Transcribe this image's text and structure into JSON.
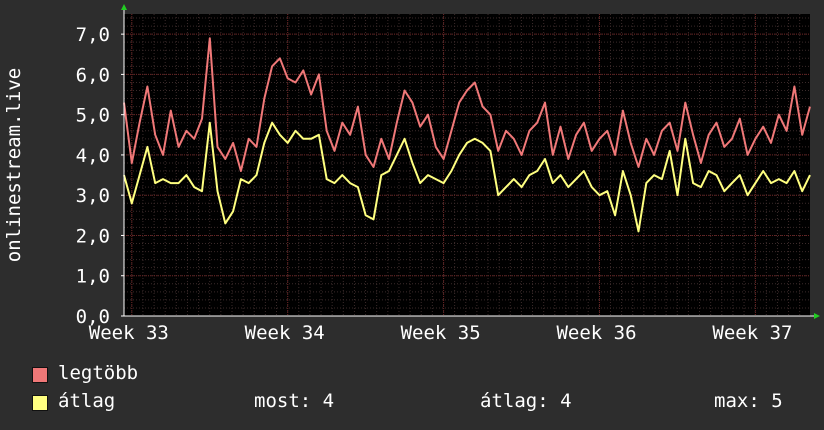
{
  "chart_data": {
    "type": "line",
    "title": "",
    "xlabel": "",
    "ylabel": "onlinestream.live",
    "ylim": [
      0,
      7.5
    ],
    "y_ticks": [
      "0,0",
      "1,0",
      "2,0",
      "3,0",
      "4,0",
      "5,0",
      "6,0",
      "7,0"
    ],
    "x_ticks": [
      "Week 33",
      "Week 34",
      "Week 35",
      "Week 36",
      "Week 37"
    ],
    "x_tick_positions": [
      0.5,
      1.5,
      2.5,
      3.5,
      4.5
    ],
    "xlim": [
      0.45,
      4.85
    ],
    "grid": true,
    "background": "#000000",
    "series": [
      {
        "name": "legtöbb",
        "color": "#f07878",
        "x": [
          0.45,
          0.5,
          0.55,
          0.6,
          0.65,
          0.7,
          0.75,
          0.8,
          0.85,
          0.9,
          0.95,
          1.0,
          1.05,
          1.1,
          1.15,
          1.2,
          1.25,
          1.3,
          1.35,
          1.4,
          1.45,
          1.5,
          1.55,
          1.6,
          1.65,
          1.7,
          1.75,
          1.8,
          1.85,
          1.9,
          1.95,
          2.0,
          2.05,
          2.1,
          2.15,
          2.2,
          2.25,
          2.3,
          2.35,
          2.4,
          2.45,
          2.5,
          2.55,
          2.6,
          2.65,
          2.7,
          2.75,
          2.8,
          2.85,
          2.9,
          2.95,
          3.0,
          3.05,
          3.1,
          3.15,
          3.2,
          3.25,
          3.3,
          3.35,
          3.4,
          3.45,
          3.5,
          3.55,
          3.6,
          3.65,
          3.7,
          3.75,
          3.8,
          3.85,
          3.9,
          3.95,
          4.0,
          4.05,
          4.1,
          4.15,
          4.2,
          4.25,
          4.3,
          4.35,
          4.4,
          4.45,
          4.5,
          4.55,
          4.6,
          4.65,
          4.7,
          4.75,
          4.8,
          4.85
        ],
        "values": [
          5.3,
          3.8,
          4.8,
          5.7,
          4.5,
          4.0,
          5.1,
          4.2,
          4.6,
          4.4,
          4.9,
          6.9,
          4.2,
          3.9,
          4.3,
          3.6,
          4.4,
          4.2,
          5.4,
          6.2,
          6.4,
          5.9,
          5.8,
          6.1,
          5.5,
          6.0,
          4.6,
          4.1,
          4.8,
          4.5,
          5.2,
          4.0,
          3.7,
          4.4,
          3.9,
          4.8,
          5.6,
          5.3,
          4.7,
          5.0,
          4.2,
          3.9,
          4.6,
          5.3,
          5.6,
          5.8,
          5.2,
          5.0,
          4.1,
          4.6,
          4.4,
          4.0,
          4.6,
          4.8,
          5.3,
          4.0,
          4.7,
          3.9,
          4.5,
          4.8,
          4.1,
          4.4,
          4.6,
          4.0,
          5.1,
          4.3,
          3.7,
          4.4,
          4.0,
          4.6,
          4.8,
          4.1,
          5.3,
          4.5,
          3.8,
          4.5,
          4.8,
          4.2,
          4.4,
          4.9,
          4.0,
          4.4,
          4.7,
          4.3,
          5.0,
          4.6,
          5.7,
          4.5,
          5.2
        ]
      },
      {
        "name": "átlag",
        "color": "#ffff80",
        "x": [
          0.45,
          0.5,
          0.55,
          0.6,
          0.65,
          0.7,
          0.75,
          0.8,
          0.85,
          0.9,
          0.95,
          1.0,
          1.05,
          1.1,
          1.15,
          1.2,
          1.25,
          1.3,
          1.35,
          1.4,
          1.45,
          1.5,
          1.55,
          1.6,
          1.65,
          1.7,
          1.75,
          1.8,
          1.85,
          1.9,
          1.95,
          2.0,
          2.05,
          2.1,
          2.15,
          2.2,
          2.25,
          2.3,
          2.35,
          2.4,
          2.45,
          2.5,
          2.55,
          2.6,
          2.65,
          2.7,
          2.75,
          2.8,
          2.85,
          2.9,
          2.95,
          3.0,
          3.05,
          3.1,
          3.15,
          3.2,
          3.25,
          3.3,
          3.35,
          3.4,
          3.45,
          3.5,
          3.55,
          3.6,
          3.65,
          3.7,
          3.75,
          3.8,
          3.85,
          3.9,
          3.95,
          4.0,
          4.05,
          4.1,
          4.15,
          4.2,
          4.25,
          4.3,
          4.35,
          4.4,
          4.45,
          4.5,
          4.55,
          4.6,
          4.65,
          4.7,
          4.75,
          4.8,
          4.85
        ],
        "values": [
          3.5,
          2.8,
          3.5,
          4.2,
          3.3,
          3.4,
          3.3,
          3.3,
          3.5,
          3.2,
          3.1,
          4.8,
          3.1,
          2.3,
          2.6,
          3.4,
          3.3,
          3.5,
          4.3,
          4.8,
          4.5,
          4.3,
          4.6,
          4.4,
          4.4,
          4.5,
          3.4,
          3.3,
          3.5,
          3.3,
          3.2,
          2.5,
          2.4,
          3.5,
          3.6,
          4.0,
          4.4,
          3.8,
          3.3,
          3.5,
          3.4,
          3.3,
          3.6,
          4.0,
          4.3,
          4.4,
          4.3,
          4.1,
          3.0,
          3.2,
          3.4,
          3.2,
          3.5,
          3.6,
          3.9,
          3.3,
          3.5,
          3.2,
          3.4,
          3.6,
          3.2,
          3.0,
          3.1,
          2.5,
          3.6,
          3.0,
          2.1,
          3.3,
          3.5,
          3.4,
          4.1,
          3.0,
          4.4,
          3.3,
          3.2,
          3.6,
          3.5,
          3.1,
          3.3,
          3.5,
          3.0,
          3.3,
          3.6,
          3.3,
          3.4,
          3.3,
          3.6,
          3.1,
          3.5
        ]
      }
    ]
  },
  "legend": {
    "items": [
      {
        "name": "legtöbb",
        "color": "#f07878"
      },
      {
        "name": "átlag",
        "color": "#ffff80"
      }
    ],
    "stats": {
      "now": "most: 4",
      "avg": "átlag: 4",
      "max": "max: 5"
    }
  }
}
